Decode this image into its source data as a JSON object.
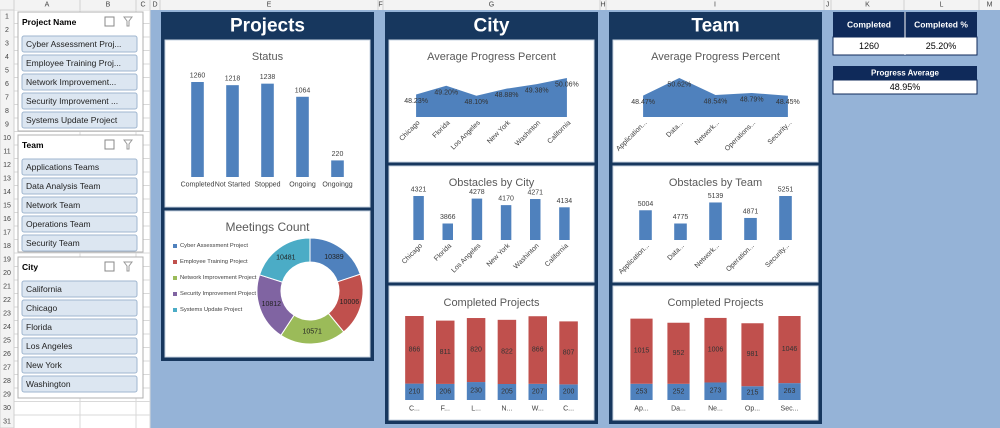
{
  "column_headers": [
    "A",
    "B",
    "C",
    "D",
    "E",
    "F",
    "G",
    "H",
    "I",
    "J",
    "K",
    "L",
    "M"
  ],
  "row_headers": [
    1,
    2,
    3,
    4,
    5,
    6,
    7,
    8,
    9,
    10,
    11,
    12,
    13,
    14,
    15,
    16,
    17,
    18,
    19,
    20,
    21,
    22,
    23,
    24,
    25,
    26,
    27,
    28,
    29,
    30,
    31
  ],
  "slicers": [
    {
      "title": "Project Name",
      "items": [
        "Cyber Assessment Proj...",
        "Employee Training Proj...",
        "Network Improvement...",
        "Security Improvement ...",
        "Systems Update Project"
      ]
    },
    {
      "title": "Team",
      "items": [
        "Applications Teams",
        "Data Analysis Team",
        "Network Team",
        "Operations Team",
        "Security Team"
      ]
    },
    {
      "title": "City",
      "items": [
        "California",
        "Chicago",
        "Florida",
        "Los Angeles",
        "New York",
        "Washington"
      ]
    }
  ],
  "panels": [
    "Projects",
    "City",
    "Team"
  ],
  "charts": [
    {
      "type": "bar",
      "title": "Status",
      "categories": [
        "Completed",
        "Not Started",
        "Stopped",
        "Ongoing",
        "Ongoingg"
      ],
      "values": [
        1260,
        1218,
        1238,
        1064,
        220
      ],
      "color": "#4f81bd"
    },
    {
      "type": "donut",
      "title": "Meetings Count",
      "categories": [
        "Cyber Assessment Project",
        "Employee Training Project",
        "Network Improvement Project",
        "Security Improvement Project",
        "Systems Update Project"
      ],
      "values": [
        10389,
        10006,
        10571,
        10812,
        10481
      ],
      "colors": [
        "#4f81bd",
        "#c0504d",
        "#9bbb59",
        "#8064a2",
        "#4bacc6"
      ]
    },
    {
      "type": "area",
      "title": "Average Progress Percent",
      "categories": [
        "Chicago",
        "Florida",
        "Los Angeles",
        "New York",
        "Washinton",
        "California"
      ],
      "values": [
        48.23,
        49.2,
        48.1,
        48.88,
        49.38,
        50.06
      ],
      "value_labels": [
        "48.23%",
        "49.20%",
        "48.10%",
        "48.88%",
        "49.38%",
        "50.06%"
      ],
      "color": "#4f81bd"
    },
    {
      "type": "bar",
      "title": "Obstacles by City",
      "categories": [
        "Chicago",
        "Florida",
        "Los Angeles",
        "New York",
        "Washinton",
        "California"
      ],
      "values": [
        4321,
        3866,
        4278,
        4170,
        4271,
        4134
      ],
      "color": "#4f81bd"
    },
    {
      "type": "stacked",
      "title": "Completed Projects",
      "categories": [
        "C...",
        "F...",
        "L...",
        "N...",
        "W...",
        "C..."
      ],
      "series": [
        {
          "color": "#4f81bd",
          "values": [
            210,
            206,
            230,
            205,
            207,
            200
          ]
        },
        {
          "color": "#c0504d",
          "values": [
            866,
            811,
            820,
            822,
            866,
            807
          ]
        }
      ]
    },
    {
      "type": "area",
      "title": "Average Progress Percent",
      "categories": [
        "Application...",
        "Data...",
        "Network...",
        "Operations...",
        "Security..."
      ],
      "values": [
        48.47,
        50.62,
        48.54,
        48.79,
        48.45
      ],
      "value_labels": [
        "48.47%",
        "50.62%",
        "48.54%",
        "48.79%",
        "48.45%"
      ],
      "color": "#4f81bd"
    },
    {
      "type": "bar",
      "title": "Obstacles by Team",
      "categories": [
        "Application...",
        "Data...",
        "Network...",
        "Operation...",
        "Security..."
      ],
      "values": [
        5004,
        4775,
        5139,
        4871,
        5251
      ],
      "color": "#4f81bd"
    },
    {
      "type": "stacked",
      "title": "Completed Projects",
      "categories": [
        "Ap...",
        "Da...",
        "Ne...",
        "Op...",
        "Sec..."
      ],
      "series": [
        {
          "color": "#4f81bd",
          "values": [
            253,
            252,
            273,
            215,
            263
          ]
        },
        {
          "color": "#c0504d",
          "values": [
            1015,
            952,
            1006,
            981,
            1046
          ]
        }
      ]
    }
  ],
  "kpi": {
    "headers": [
      "Completed",
      "Completed %"
    ],
    "values": [
      "1260",
      "25.20%"
    ]
  },
  "progress_average": {
    "title": "Progress Average",
    "value": "48.95%"
  }
}
